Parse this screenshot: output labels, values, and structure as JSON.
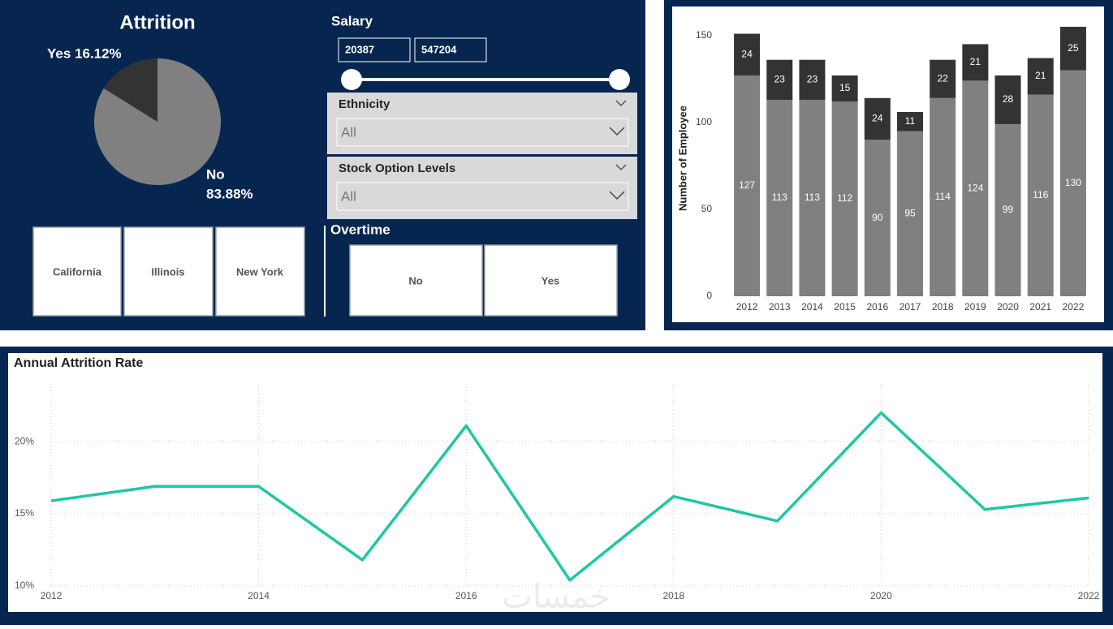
{
  "chart_data": [
    {
      "type": "pie",
      "title": "Attrition",
      "categories": [
        "No",
        "Yes"
      ],
      "values": [
        83.88,
        16.12
      ],
      "value_labels": [
        "83.88%",
        "16.12%"
      ],
      "colors": [
        "#808080",
        "#333333"
      ]
    },
    {
      "type": "bar",
      "stacked": true,
      "y_label": "Number of Employee",
      "categories": [
        "2012",
        "2013",
        "2014",
        "2015",
        "2016",
        "2017",
        "2018",
        "2019",
        "2020",
        "2021",
        "2022"
      ],
      "series": [
        {
          "color": "#808080",
          "values": [
            127,
            113,
            113,
            112,
            90,
            95,
            114,
            124,
            99,
            116,
            130
          ]
        },
        {
          "color": "#333333",
          "values": [
            24,
            23,
            23,
            15,
            24,
            11,
            22,
            21,
            28,
            21,
            25
          ]
        }
      ],
      "ylim": [
        0,
        155
      ],
      "yticks": [
        0,
        50,
        100,
        150
      ]
    },
    {
      "type": "line",
      "title": "Annual Attrition Rate",
      "x": [
        2012,
        2013,
        2014,
        2015,
        2016,
        2017,
        2018,
        2019,
        2020,
        2021,
        2022
      ],
      "values": [
        15.9,
        16.9,
        16.9,
        11.8,
        21.1,
        10.4,
        16.2,
        14.5,
        22.0,
        15.3,
        16.1
      ],
      "color": "#1fc7a4",
      "xlim": [
        2012,
        2022
      ],
      "xticks": [
        2012,
        2014,
        2016,
        2018,
        2020,
        2022
      ],
      "ylim": [
        10,
        24
      ],
      "yticks": [
        {
          "value": 10,
          "label": "10%"
        },
        {
          "value": 15,
          "label": "15%"
        },
        {
          "value": 20,
          "label": "20%"
        }
      ],
      "grid": true
    }
  ],
  "salary": {
    "title": "Salary",
    "min": 20387,
    "max": 547204
  },
  "ethnicity": {
    "title": "Ethnicity",
    "value": "All"
  },
  "stock_option_levels": {
    "title": "Stock Option Levels",
    "value": "All"
  },
  "location": {
    "options": [
      "California",
      "Illinois",
      "New York"
    ]
  },
  "overtime": {
    "title": "Overtime",
    "options": [
      "No",
      "Yes"
    ]
  },
  "watermark": "خمسات"
}
